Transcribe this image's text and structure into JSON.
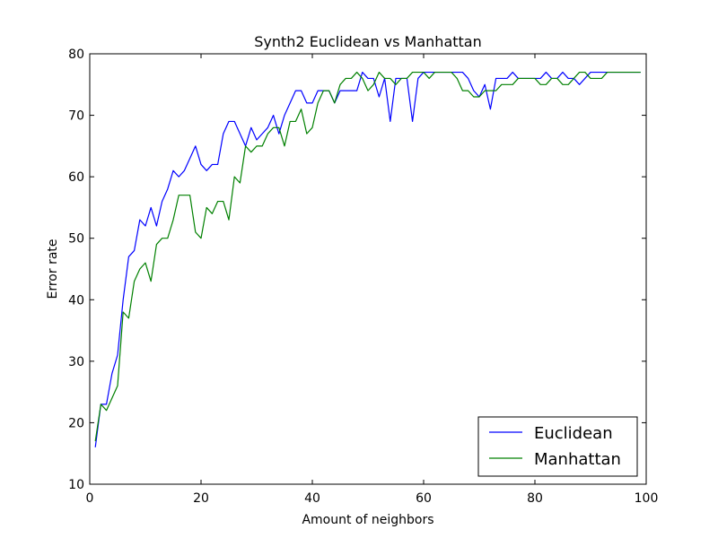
{
  "chart_data": {
    "type": "line",
    "title": "Synth2 Euclidean vs Manhattan",
    "xlabel": "Amount of neighbors",
    "ylabel": "Error rate",
    "xlim": [
      0,
      100
    ],
    "ylim": [
      10,
      80
    ],
    "xticks": [
      0,
      20,
      40,
      60,
      80,
      100
    ],
    "yticks": [
      10,
      20,
      30,
      40,
      50,
      60,
      70,
      80
    ],
    "grid": false,
    "legend_position": "bottom-right",
    "x": [
      1,
      2,
      3,
      4,
      5,
      6,
      7,
      8,
      9,
      10,
      11,
      12,
      13,
      14,
      15,
      16,
      17,
      18,
      19,
      20,
      21,
      22,
      23,
      24,
      25,
      26,
      27,
      28,
      29,
      30,
      31,
      32,
      33,
      34,
      35,
      36,
      37,
      38,
      39,
      40,
      41,
      42,
      43,
      44,
      45,
      46,
      47,
      48,
      49,
      50,
      51,
      52,
      53,
      54,
      55,
      56,
      57,
      58,
      59,
      60,
      61,
      62,
      63,
      64,
      65,
      66,
      67,
      68,
      69,
      70,
      71,
      72,
      73,
      74,
      75,
      76,
      77,
      78,
      79,
      80,
      81,
      82,
      83,
      84,
      85,
      86,
      87,
      88,
      89,
      90,
      91,
      92,
      93,
      94,
      95,
      96,
      97,
      98,
      99
    ],
    "series": [
      {
        "name": "Euclidean",
        "color": "#0000ff",
        "values": [
          16,
          23,
          23,
          28,
          31,
          40,
          47,
          48,
          53,
          52,
          55,
          52,
          56,
          58,
          61,
          60,
          61,
          63,
          65,
          62,
          61,
          62,
          62,
          67,
          69,
          69,
          67,
          65,
          68,
          66,
          67,
          68,
          70,
          67,
          70,
          72,
          74,
          74,
          72,
          72,
          74,
          74,
          74,
          72,
          74,
          74,
          74,
          74,
          77,
          76,
          76,
          73,
          76,
          69,
          76,
          76,
          76,
          69,
          76,
          77,
          77,
          77,
          77,
          77,
          77,
          77,
          77,
          76,
          74,
          73,
          75,
          71,
          76,
          76,
          76,
          77,
          76,
          76,
          76,
          76,
          76,
          77,
          76,
          76,
          77,
          76,
          76,
          75,
          76,
          77,
          77,
          77,
          77,
          77,
          77,
          77,
          77,
          77,
          77
        ]
      },
      {
        "name": "Manhattan",
        "color": "#008000",
        "values": [
          17,
          23,
          22,
          24,
          26,
          38,
          37,
          43,
          45,
          46,
          43,
          49,
          50,
          50,
          53,
          57,
          57,
          57,
          51,
          50,
          55,
          54,
          56,
          56,
          53,
          60,
          59,
          65,
          64,
          65,
          65,
          67,
          68,
          68,
          65,
          69,
          69,
          71,
          67,
          68,
          72,
          74,
          74,
          72,
          75,
          76,
          76,
          77,
          76,
          74,
          75,
          77,
          76,
          76,
          75,
          76,
          76,
          77,
          77,
          77,
          76,
          77,
          77,
          77,
          77,
          76,
          74,
          74,
          73,
          73,
          74,
          74,
          74,
          75,
          75,
          75,
          76,
          76,
          76,
          76,
          75,
          75,
          76,
          76,
          75,
          75,
          76,
          77,
          77,
          76,
          76,
          76,
          77,
          77,
          77,
          77,
          77,
          77,
          77
        ]
      }
    ]
  }
}
